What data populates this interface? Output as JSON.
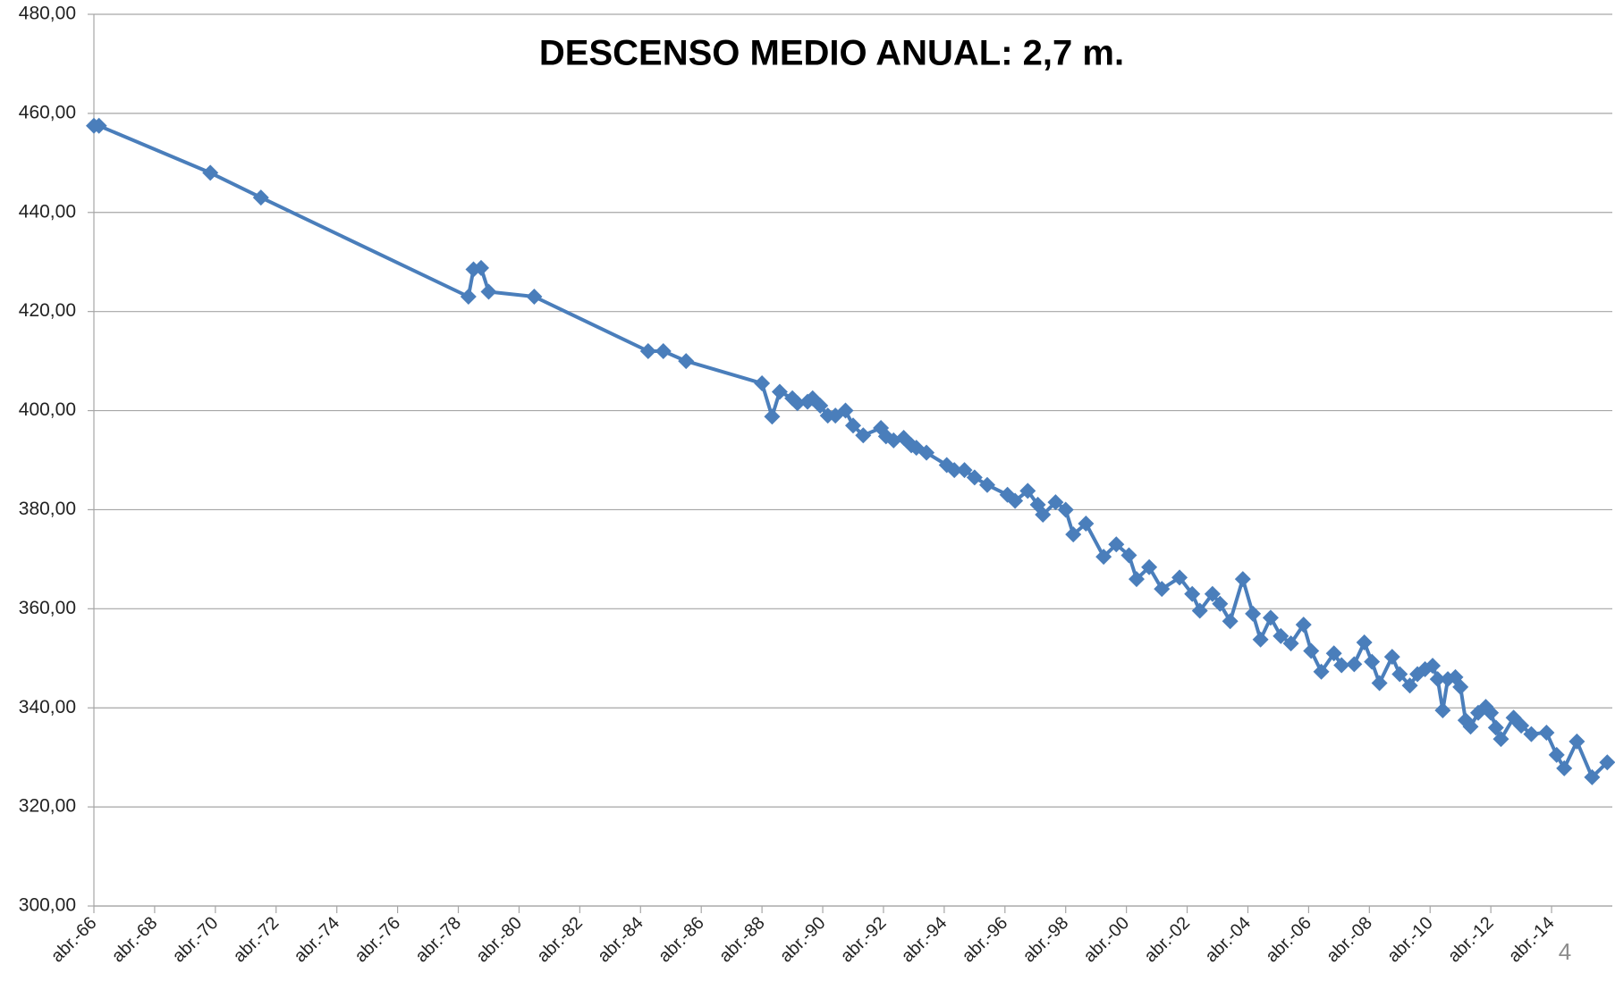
{
  "chart_data": {
    "type": "line",
    "title": "DESCENSO MEDIO ANUAL: 2,7 m.",
    "page_number": "4",
    "color": "#4a7ebb",
    "grid": true,
    "marker": "diamond",
    "x": [
      "1966-04",
      "1966-06",
      "1970-02",
      "1971-10",
      "1978-08",
      "1978-10",
      "1979-01",
      "1979-04",
      "1980-10",
      "1984-07",
      "1985-01",
      "1985-10",
      "1988-04",
      "1988-08",
      "1988-11",
      "1989-04",
      "1989-06",
      "1989-10",
      "1989-12",
      "1990-03",
      "1990-06",
      "1990-09",
      "1991-01",
      "1991-04",
      "1991-08",
      "1992-03",
      "1992-05",
      "1992-08",
      "1992-12",
      "1993-03",
      "1993-05",
      "1993-09",
      "1994-05",
      "1994-08",
      "1994-12",
      "1995-04",
      "1995-09",
      "1996-05",
      "1996-08",
      "1997-01",
      "1997-05",
      "1997-07",
      "1997-12",
      "1998-04",
      "1998-07",
      "1998-12",
      "1999-07",
      "1999-12",
      "2000-05",
      "2000-08",
      "2001-01",
      "2001-06",
      "2002-01",
      "2002-06",
      "2002-09",
      "2003-02",
      "2003-05",
      "2003-09",
      "2004-02",
      "2004-06",
      "2004-09",
      "2005-01",
      "2005-05",
      "2005-09",
      "2006-02",
      "2006-05",
      "2006-09",
      "2007-02",
      "2007-05",
      "2007-10",
      "2008-02",
      "2008-05",
      "2008-08",
      "2009-01",
      "2009-04",
      "2009-08",
      "2009-11",
      "2010-02",
      "2010-05",
      "2010-07",
      "2010-09",
      "2010-11",
      "2011-02",
      "2011-04",
      "2011-06",
      "2011-08",
      "2011-11",
      "2012-02",
      "2012-04",
      "2012-06",
      "2012-08",
      "2013-01",
      "2013-04",
      "2013-08",
      "2014-02",
      "2014-06",
      "2014-09",
      "2015-02",
      "2015-08",
      "2016-02"
    ],
    "values": [
      457.5,
      457.5,
      448,
      443,
      423,
      428.5,
      428.8,
      424,
      423,
      412,
      412,
      410,
      405.5,
      398.8,
      403.8,
      402.5,
      401.5,
      401.8,
      402.5,
      401,
      399,
      399,
      400,
      397,
      395,
      396.5,
      394.8,
      394,
      394.5,
      393,
      392.5,
      391.5,
      389,
      388,
      388,
      386.5,
      385,
      383,
      381.8,
      383.8,
      381,
      379,
      381.5,
      380,
      375,
      377.2,
      370.5,
      373,
      370.8,
      366,
      368.4,
      364,
      366.3,
      363,
      359.6,
      363,
      361,
      357.5,
      366,
      359,
      353.8,
      358.2,
      354.5,
      353,
      356.8,
      351.5,
      347.3,
      351,
      348.6,
      348.8,
      353.2,
      349.3,
      345,
      350.3,
      346.8,
      344.5,
      346.8,
      347.8,
      348.5,
      345.8,
      339.5,
      345.8,
      346.2,
      344.2,
      337.5,
      336.2,
      339,
      340.2,
      339,
      336,
      333.7,
      338,
      336.4,
      334.7,
      335,
      330.5,
      327.8,
      333.2,
      326,
      329
    ],
    "xlim": [
      "1966-04",
      "2016-04"
    ],
    "xticks": [
      {
        "value": "1966-04",
        "label": "abr.-66"
      },
      {
        "value": "1968-04",
        "label": "abr.-68"
      },
      {
        "value": "1970-04",
        "label": "abr.-70"
      },
      {
        "value": "1972-04",
        "label": "abr.-72"
      },
      {
        "value": "1974-04",
        "label": "abr.-74"
      },
      {
        "value": "1976-04",
        "label": "abr.-76"
      },
      {
        "value": "1978-04",
        "label": "abr.-78"
      },
      {
        "value": "1980-04",
        "label": "abr.-80"
      },
      {
        "value": "1982-04",
        "label": "abr.-82"
      },
      {
        "value": "1984-04",
        "label": "abr.-84"
      },
      {
        "value": "1986-04",
        "label": "abr.-86"
      },
      {
        "value": "1988-04",
        "label": "abr.-88"
      },
      {
        "value": "1990-04",
        "label": "abr.-90"
      },
      {
        "value": "1992-04",
        "label": "abr.-92"
      },
      {
        "value": "1994-04",
        "label": "abr.-94"
      },
      {
        "value": "1996-04",
        "label": "abr.-96"
      },
      {
        "value": "1998-04",
        "label": "abr.-98"
      },
      {
        "value": "2000-04",
        "label": "abr.-00"
      },
      {
        "value": "2002-04",
        "label": "abr.-02"
      },
      {
        "value": "2004-04",
        "label": "abr.-04"
      },
      {
        "value": "2006-04",
        "label": "abr.-06"
      },
      {
        "value": "2008-04",
        "label": "abr.-08"
      },
      {
        "value": "2010-04",
        "label": "abr.-10"
      },
      {
        "value": "2012-04",
        "label": "abr.-12"
      },
      {
        "value": "2014-04",
        "label": "abr.-14"
      }
    ],
    "ylim": [
      300,
      480
    ],
    "yticks": [
      {
        "value": 300,
        "label": "300,00"
      },
      {
        "value": 320,
        "label": "320,00"
      },
      {
        "value": 340,
        "label": "340,00"
      },
      {
        "value": 360,
        "label": "360,00"
      },
      {
        "value": 380,
        "label": "380,00"
      },
      {
        "value": 400,
        "label": "400,00"
      },
      {
        "value": 420,
        "label": "420,00"
      },
      {
        "value": 440,
        "label": "440,00"
      },
      {
        "value": 460,
        "label": "460,00"
      },
      {
        "value": 480,
        "label": "480,00"
      }
    ]
  }
}
